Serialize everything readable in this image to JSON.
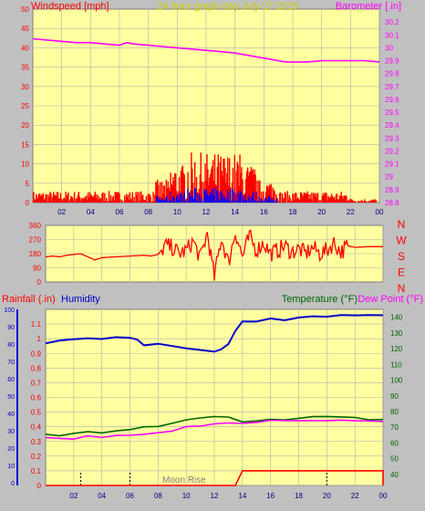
{
  "colors": {
    "plot_bg": "#ffffa0",
    "frame_bg": "#c0c0c0",
    "wind": "#ff0000",
    "gust_low": "#0000ff",
    "barometer": "#ff00ff",
    "direction": "#ff0000",
    "rainfall": "#ff0000",
    "humidity": "#0000cc",
    "temperature": "#006600",
    "dewpoint": "#ff00ff",
    "grid": "#b0b0b0",
    "title": "#cccc00"
  },
  "chart_data": [
    {
      "type": "line",
      "id": "wind-baro",
      "title": "24 hour graph day   July 27 2025",
      "ylabel_left": "Windspeed [mph]",
      "ylabel_right": "Barometer [.in]",
      "xlim": [
        0,
        24
      ],
      "x_ticks": [
        "02",
        "04",
        "06",
        "08",
        "10",
        "12",
        "14",
        "16",
        "18",
        "20",
        "22",
        "00"
      ],
      "left_ylim": [
        0,
        50
      ],
      "left_ticks": [
        "0",
        "5",
        "10",
        "15",
        "20",
        "25",
        "30",
        "35",
        "40",
        "45",
        "50"
      ],
      "right_ylim": [
        28.8,
        30.3
      ],
      "right_ticks": [
        "28.8",
        "28.9",
        "29",
        "29.1",
        "29.2",
        "29.3",
        "29.4",
        "29.5",
        "29.6",
        "29.7",
        "29.8",
        "29.9",
        "30",
        "30.1",
        "30.2"
      ],
      "series": [
        {
          "kind": "barometer",
          "points": [
            [
              0,
              30.07
            ],
            [
              1,
              30.06
            ],
            [
              2,
              30.05
            ],
            [
              3,
              30.04
            ],
            [
              4,
              30.04
            ],
            [
              5,
              30.03
            ],
            [
              6,
              30.02
            ],
            [
              6.5,
              30.04
            ],
            [
              7,
              30.03
            ],
            [
              8,
              30.02
            ],
            [
              9,
              30.01
            ],
            [
              10,
              30.0
            ],
            [
              11,
              29.99
            ],
            [
              12,
              29.98
            ],
            [
              13,
              29.97
            ],
            [
              14,
              29.96
            ],
            [
              15,
              29.94
            ],
            [
              16,
              29.92
            ],
            [
              17,
              29.9
            ],
            [
              17.5,
              29.89
            ],
            [
              18,
              29.89
            ],
            [
              19,
              29.89
            ],
            [
              20,
              29.9
            ],
            [
              21,
              29.9
            ],
            [
              22,
              29.9
            ],
            [
              23,
              29.9
            ],
            [
              24,
              29.89
            ]
          ]
        },
        {
          "kind": "wind_bands",
          "bands": [
            {
              "from": 0,
              "to": 8.5,
              "max": 3
            },
            {
              "from": 8.5,
              "to": 9.5,
              "max": 6
            },
            {
              "from": 9.5,
              "to": 10.5,
              "max": 10
            },
            {
              "from": 10.5,
              "to": 14.5,
              "max": 13
            },
            {
              "from": 14.5,
              "to": 15.5,
              "max": 10
            },
            {
              "from": 15.5,
              "to": 17,
              "max": 6
            },
            {
              "from": 17,
              "to": 22,
              "max": 3
            },
            {
              "from": 22,
              "to": 24,
              "max": 1
            }
          ]
        }
      ]
    },
    {
      "type": "line",
      "id": "wind-direction",
      "ylim": [
        0,
        360
      ],
      "left_ticks": [
        "0",
        "90",
        "180",
        "270",
        "360"
      ],
      "right_labels": [
        "N",
        "W",
        "S",
        "E",
        "N"
      ],
      "points": [
        [
          0,
          160
        ],
        [
          0.5,
          165
        ],
        [
          1,
          160
        ],
        [
          1.5,
          170
        ],
        [
          2,
          175
        ],
        [
          2.5,
          180
        ],
        [
          3,
          160
        ],
        [
          3.5,
          140
        ],
        [
          4,
          155
        ],
        [
          5,
          160
        ],
        [
          6,
          165
        ],
        [
          7,
          170
        ],
        [
          7.5,
          165
        ],
        [
          8,
          175
        ],
        [
          8.5,
          230
        ],
        [
          9,
          220
        ],
        [
          9.5,
          180
        ],
        [
          10,
          200
        ],
        [
          10.5,
          260
        ],
        [
          11,
          150
        ],
        [
          11.5,
          310
        ],
        [
          12,
          30
        ],
        [
          12.5,
          280
        ],
        [
          13,
          120
        ],
        [
          13.5,
          320
        ],
        [
          14,
          160
        ],
        [
          14.5,
          290
        ],
        [
          15,
          200
        ],
        [
          15.5,
          250
        ],
        [
          16,
          180
        ],
        [
          16.5,
          200
        ],
        [
          17,
          230
        ],
        [
          17.5,
          190
        ],
        [
          18,
          210
        ],
        [
          18.5,
          180
        ],
        [
          19,
          220
        ],
        [
          19.5,
          180
        ],
        [
          20,
          200
        ],
        [
          20.5,
          250
        ],
        [
          21,
          190
        ],
        [
          21.5,
          230
        ],
        [
          22,
          220
        ],
        [
          23,
          225
        ],
        [
          24,
          225
        ]
      ]
    },
    {
      "type": "line",
      "id": "rain-hum-temp",
      "ylabel_left_1": "Rainfall (.in)",
      "ylabel_left_2": "Humidity",
      "ylabel_right_1": "Temperature (°F)",
      "ylabel_right_2": "Dew Point (°F)",
      "annotation": "Moon Rise",
      "humidity_ticks": [
        "0",
        "10",
        "20",
        "30",
        "40",
        "50",
        "60",
        "70",
        "80",
        "90",
        "100"
      ],
      "rain_ticks": [
        "0",
        "0.1",
        "0.2",
        "0.3",
        "0.4",
        "0.5",
        "0.6",
        "0.7",
        "0.8",
        "0.9",
        "1",
        "1.1"
      ],
      "temp_ticks": [
        "40",
        "50",
        "60",
        "70",
        "80",
        "90",
        "100",
        "110",
        "120",
        "130",
        "140"
      ],
      "rain_ylim": [
        0,
        1.2
      ],
      "temp_ylim": [
        33,
        145
      ],
      "series": [
        {
          "name": "Humidity",
          "units": "rain_scale",
          "points": [
            [
              0,
              0.97
            ],
            [
              1,
              0.99
            ],
            [
              2,
              1.0
            ],
            [
              3,
              1.0
            ],
            [
              4,
              1.0
            ],
            [
              5,
              1.01
            ],
            [
              6,
              1.0
            ],
            [
              6.5,
              0.99
            ],
            [
              7,
              0.95
            ],
            [
              8,
              0.96
            ],
            [
              9,
              0.95
            ],
            [
              10,
              0.93
            ],
            [
              11,
              0.92
            ],
            [
              12,
              0.91
            ],
            [
              12.5,
              0.93
            ],
            [
              13,
              0.96
            ],
            [
              13.5,
              1.05
            ],
            [
              14,
              1.12
            ],
            [
              15,
              1.12
            ],
            [
              16,
              1.14
            ],
            [
              17,
              1.13
            ],
            [
              18,
              1.14
            ],
            [
              19,
              1.15
            ],
            [
              20,
              1.15
            ],
            [
              21,
              1.16
            ],
            [
              22,
              1.16
            ],
            [
              23,
              1.16
            ],
            [
              24,
              1.16
            ]
          ]
        },
        {
          "name": "Temperature",
          "units": "temp",
          "points": [
            [
              0,
              66
            ],
            [
              1,
              65
            ],
            [
              2,
              66
            ],
            [
              3,
              67
            ],
            [
              4,
              67
            ],
            [
              5,
              68
            ],
            [
              6,
              69
            ],
            [
              7,
              70
            ],
            [
              8,
              71
            ],
            [
              9,
              73
            ],
            [
              10,
              75
            ],
            [
              11,
              76
            ],
            [
              12,
              77
            ],
            [
              13,
              77
            ],
            [
              14,
              73
            ],
            [
              15,
              74
            ],
            [
              16,
              75
            ],
            [
              17,
              75
            ],
            [
              18,
              76
            ],
            [
              19,
              77
            ],
            [
              20,
              77
            ],
            [
              21,
              76
            ],
            [
              22,
              76
            ],
            [
              23,
              75
            ],
            [
              24,
              75
            ]
          ]
        },
        {
          "name": "Dew Point",
          "units": "temp",
          "points": [
            [
              0,
              63
            ],
            [
              1,
              63
            ],
            [
              2,
              63
            ],
            [
              3,
              64
            ],
            [
              4,
              64
            ],
            [
              5,
              65
            ],
            [
              6,
              65
            ],
            [
              7,
              66
            ],
            [
              8,
              67
            ],
            [
              9,
              68
            ],
            [
              10,
              70
            ],
            [
              11,
              71
            ],
            [
              12,
              72
            ],
            [
              13,
              73
            ],
            [
              14,
              72
            ],
            [
              15,
              73
            ],
            [
              16,
              74
            ],
            [
              17,
              74
            ],
            [
              18,
              74
            ],
            [
              19,
              74
            ],
            [
              20,
              74
            ],
            [
              21,
              74
            ],
            [
              22,
              74
            ],
            [
              23,
              74
            ],
            [
              24,
              74
            ]
          ]
        },
        {
          "name": "Rainfall",
          "units": "rain",
          "points": [
            [
              0,
              0
            ],
            [
              13.5,
              0
            ],
            [
              14,
              0.1
            ],
            [
              24,
              0.1
            ],
            [
              24,
              0
            ]
          ]
        }
      ],
      "markers": [
        2.5,
        6,
        20
      ]
    }
  ]
}
